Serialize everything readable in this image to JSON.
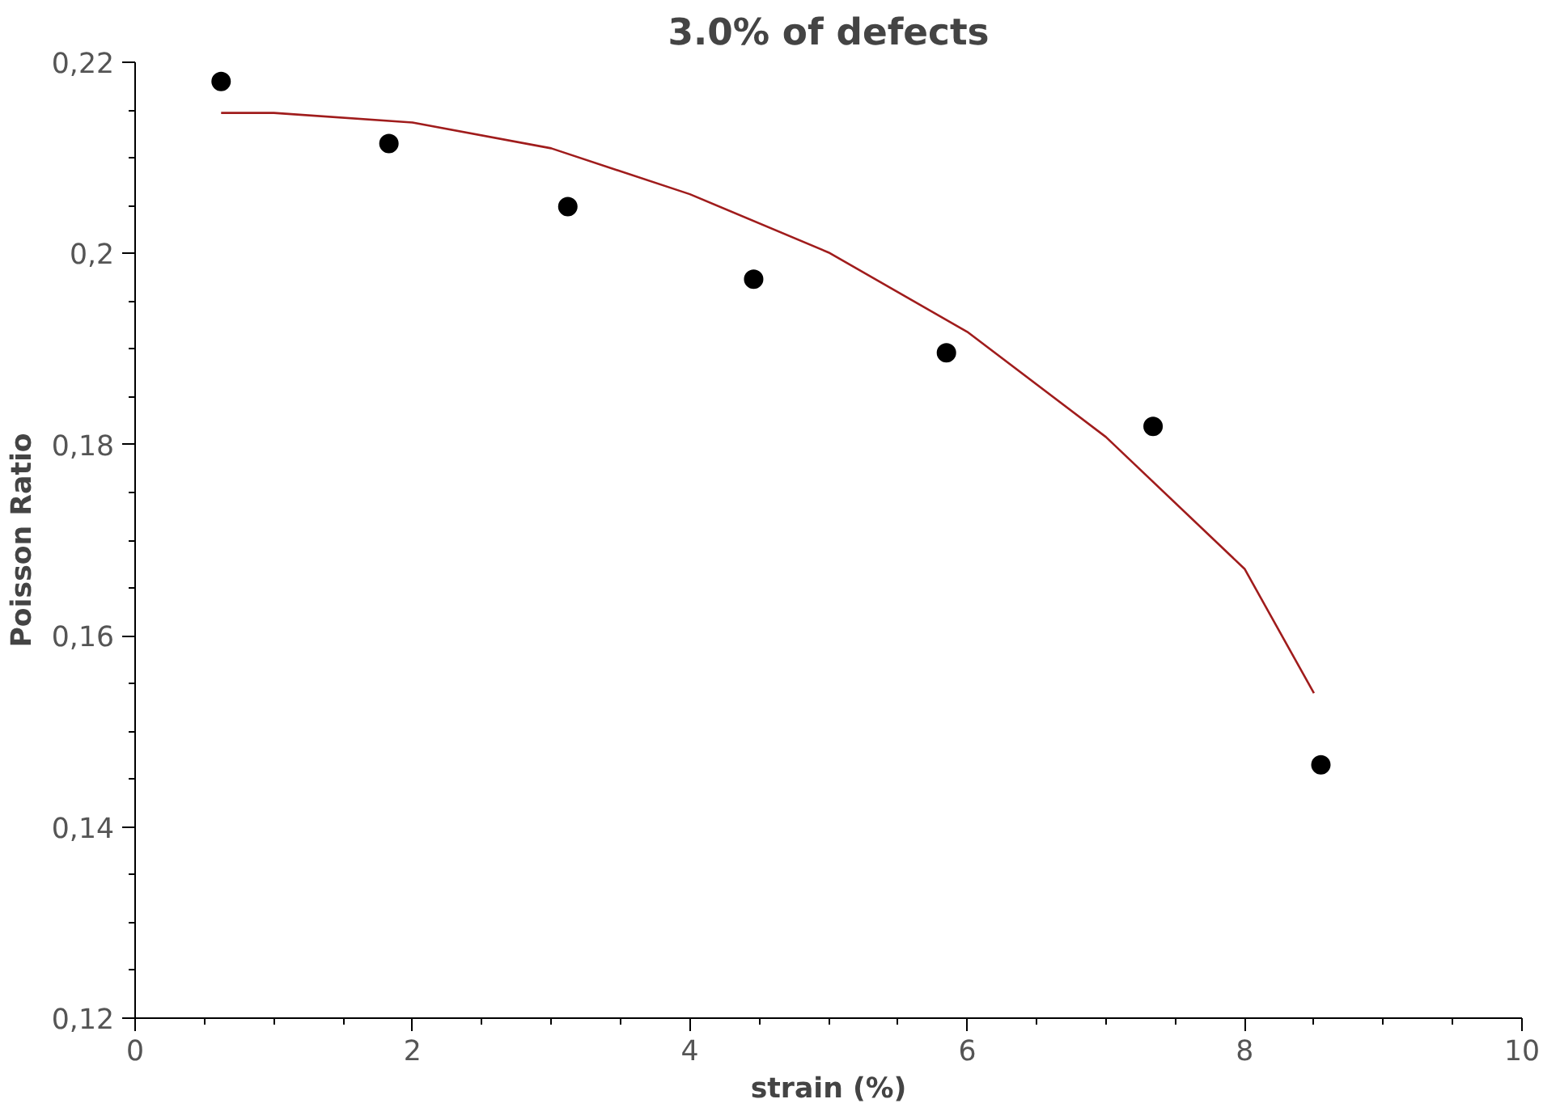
{
  "chart_data": {
    "type": "scatter",
    "title": "3.0% of defects",
    "xlabel": "strain (%)",
    "ylabel": "Poisson Ratio",
    "series": [
      {
        "marker": "circle",
        "color": "#000000",
        "x": [
          0.62,
          1.83,
          3.12,
          4.46,
          5.85,
          7.34,
          8.55
        ],
        "values": [
          0.218,
          0.2115,
          0.2049,
          0.1973,
          0.1896,
          0.1819,
          0.1465
        ]
      },
      {
        "type": "line",
        "marker": "none",
        "color": "#a01c1c",
        "x": [
          0.62,
          1,
          2,
          3,
          4,
          5,
          6,
          7,
          8,
          8.5
        ],
        "values": [
          0.2147,
          0.2147,
          0.2137,
          0.211,
          0.2062,
          0.2001,
          0.1918,
          0.1808,
          0.167,
          0.154
        ]
      }
    ],
    "xlim": [
      0,
      10
    ],
    "ylim": [
      0.12,
      0.22
    ],
    "xticks": [
      0,
      2,
      4,
      6,
      8,
      10
    ],
    "yticks": [
      {
        "value": 0.12,
        "label": "0,12"
      },
      {
        "value": 0.14,
        "label": "0,14"
      },
      {
        "value": 0.16,
        "label": "0,16"
      },
      {
        "value": 0.18,
        "label": "0,18"
      },
      {
        "value": 0.2,
        "label": "0,2"
      },
      {
        "value": 0.22,
        "label": "0,22"
      }
    ],
    "grid": false
  }
}
